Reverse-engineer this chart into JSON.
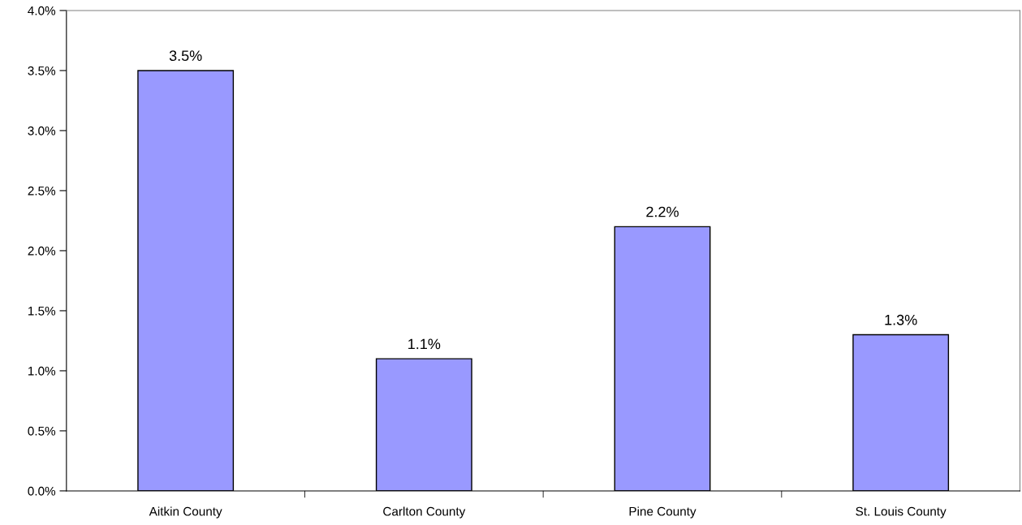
{
  "chart_data": {
    "type": "bar",
    "categories": [
      "Aitkin County",
      "Carlton County",
      "Pine County",
      "St. Louis County"
    ],
    "values": [
      3.5,
      1.1,
      2.2,
      1.3
    ],
    "value_labels": [
      "3.5%",
      "1.1%",
      "2.2%",
      "1.3%"
    ],
    "color": "#9999ff",
    "ylim": [
      0,
      4
    ],
    "yticks": [
      {
        "value": 0,
        "label": "0.0%"
      },
      {
        "value": 0.5,
        "label": "0.5%"
      },
      {
        "value": 1,
        "label": "1.0%"
      },
      {
        "value": 1.5,
        "label": "1.5%"
      },
      {
        "value": 2,
        "label": "2.0%"
      },
      {
        "value": 2.5,
        "label": "2.5%"
      },
      {
        "value": 3,
        "label": "3.0%"
      },
      {
        "value": 3.5,
        "label": "3.5%"
      },
      {
        "value": 4,
        "label": "4.0%"
      }
    ],
    "grid": false,
    "legend": false
  }
}
